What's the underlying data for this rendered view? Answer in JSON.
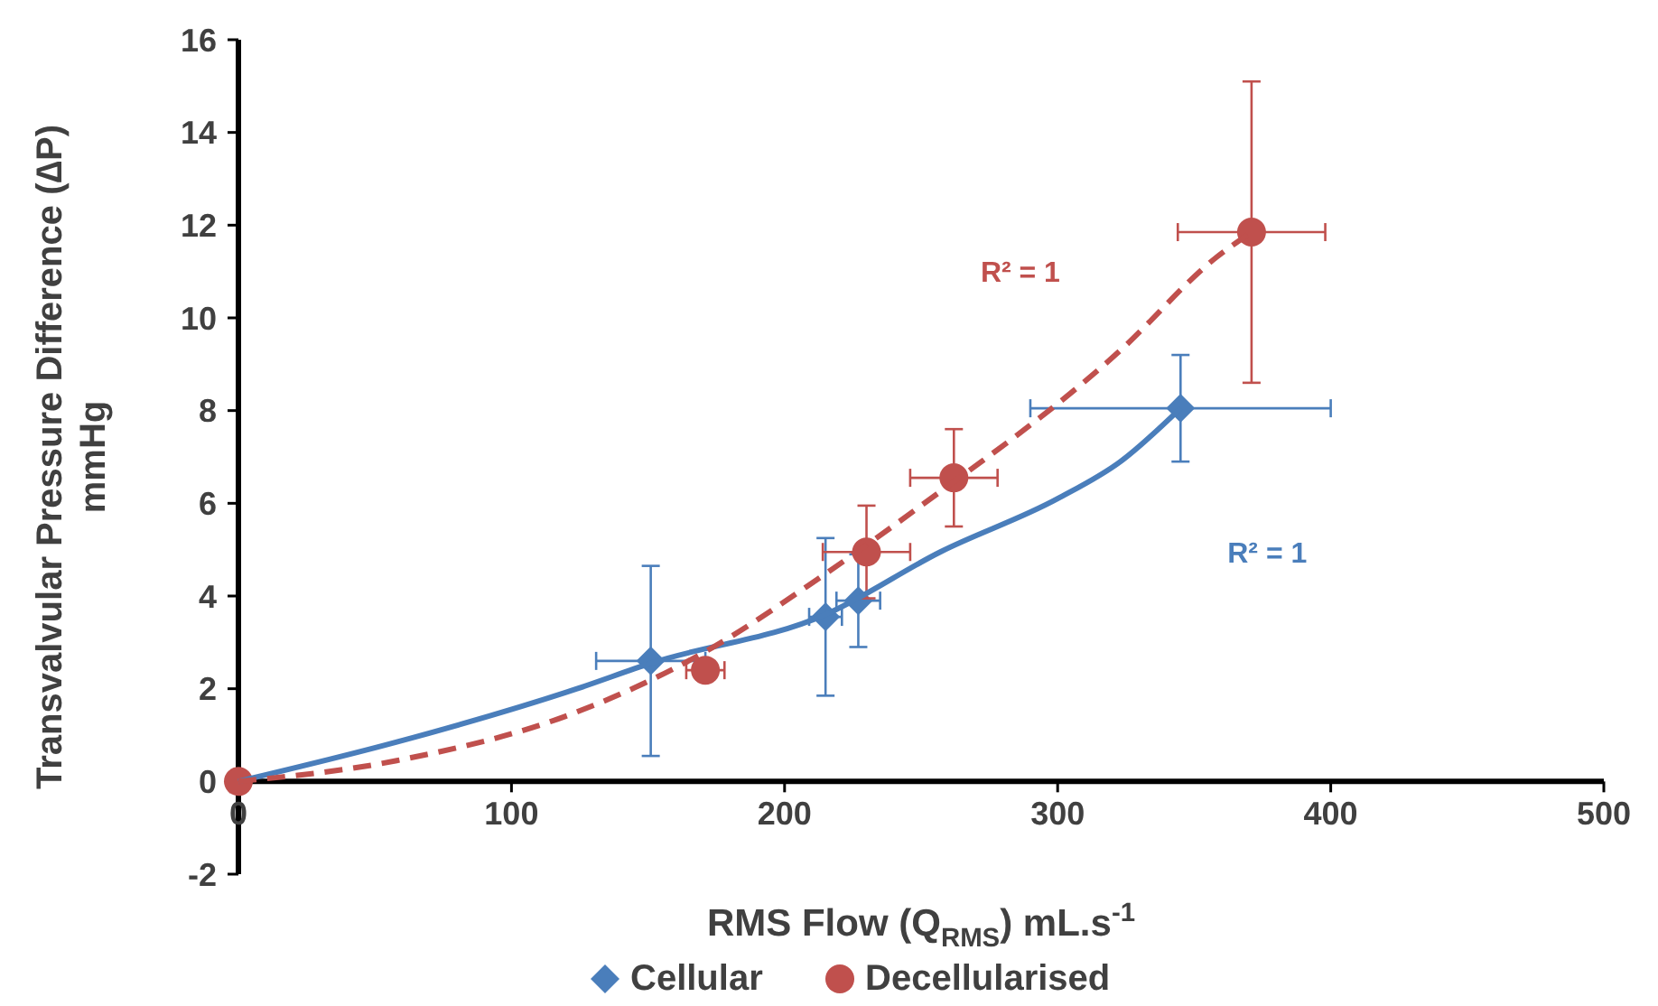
{
  "chart_data": {
    "type": "scatter",
    "xlabel": "RMS Flow (Q$_{RMS}$) mL.s$^{-1}$",
    "ylabel": "Transvalvular Pressure Difference (∆P)\nmmHg",
    "xlim": [
      0,
      500
    ],
    "xticks": [
      0,
      100,
      200,
      300,
      400,
      500
    ],
    "ylim": [
      -2,
      16
    ],
    "yticks": [
      -2,
      0,
      2,
      4,
      6,
      8,
      10,
      12,
      14,
      16
    ],
    "grid": false,
    "legend": "bottom",
    "series": [
      {
        "name": "Cellular",
        "marker": "diamond",
        "color": "#4a7ebb",
        "x": [
          151,
          215,
          227,
          345
        ],
        "values": [
          2.6,
          3.55,
          3.9,
          8.05
        ],
        "errors": [
          2.05,
          1.7,
          1.0,
          1.15
        ],
        "xerrors": [
          20,
          6,
          8,
          55
        ]
      },
      {
        "name": "Decellularised",
        "marker": "circle",
        "color": "#c0504d",
        "x": [
          0,
          171,
          230,
          262,
          371
        ],
        "values": [
          0,
          2.4,
          4.95,
          6.55,
          11.85
        ],
        "errors": [
          null,
          null,
          1.0,
          1.05,
          3.25
        ],
        "xerrors": [
          null,
          7,
          16,
          16,
          27
        ]
      },
      {
        "type": "line",
        "marker": "none",
        "line_style": "solid",
        "color": "#4a7ebb",
        "x": [
          0,
          58,
          124,
          151,
          215,
          257,
          300,
          323,
          345
        ],
        "values": [
          0,
          0.85,
          2.0,
          2.55,
          3.6,
          4.95,
          6.1,
          6.9,
          8.05
        ]
      },
      {
        "type": "line",
        "marker": "none",
        "line_style": "dashed",
        "color": "#c0504d",
        "x": [
          0,
          58,
          124,
          171,
          213,
          250,
          323,
          358,
          371
        ],
        "values": [
          0,
          0.45,
          1.5,
          2.8,
          4.4,
          5.95,
          9.3,
          11.3,
          11.85
        ]
      }
    ],
    "annotations": [
      "R² = 1",
      "R² = 1"
    ]
  }
}
